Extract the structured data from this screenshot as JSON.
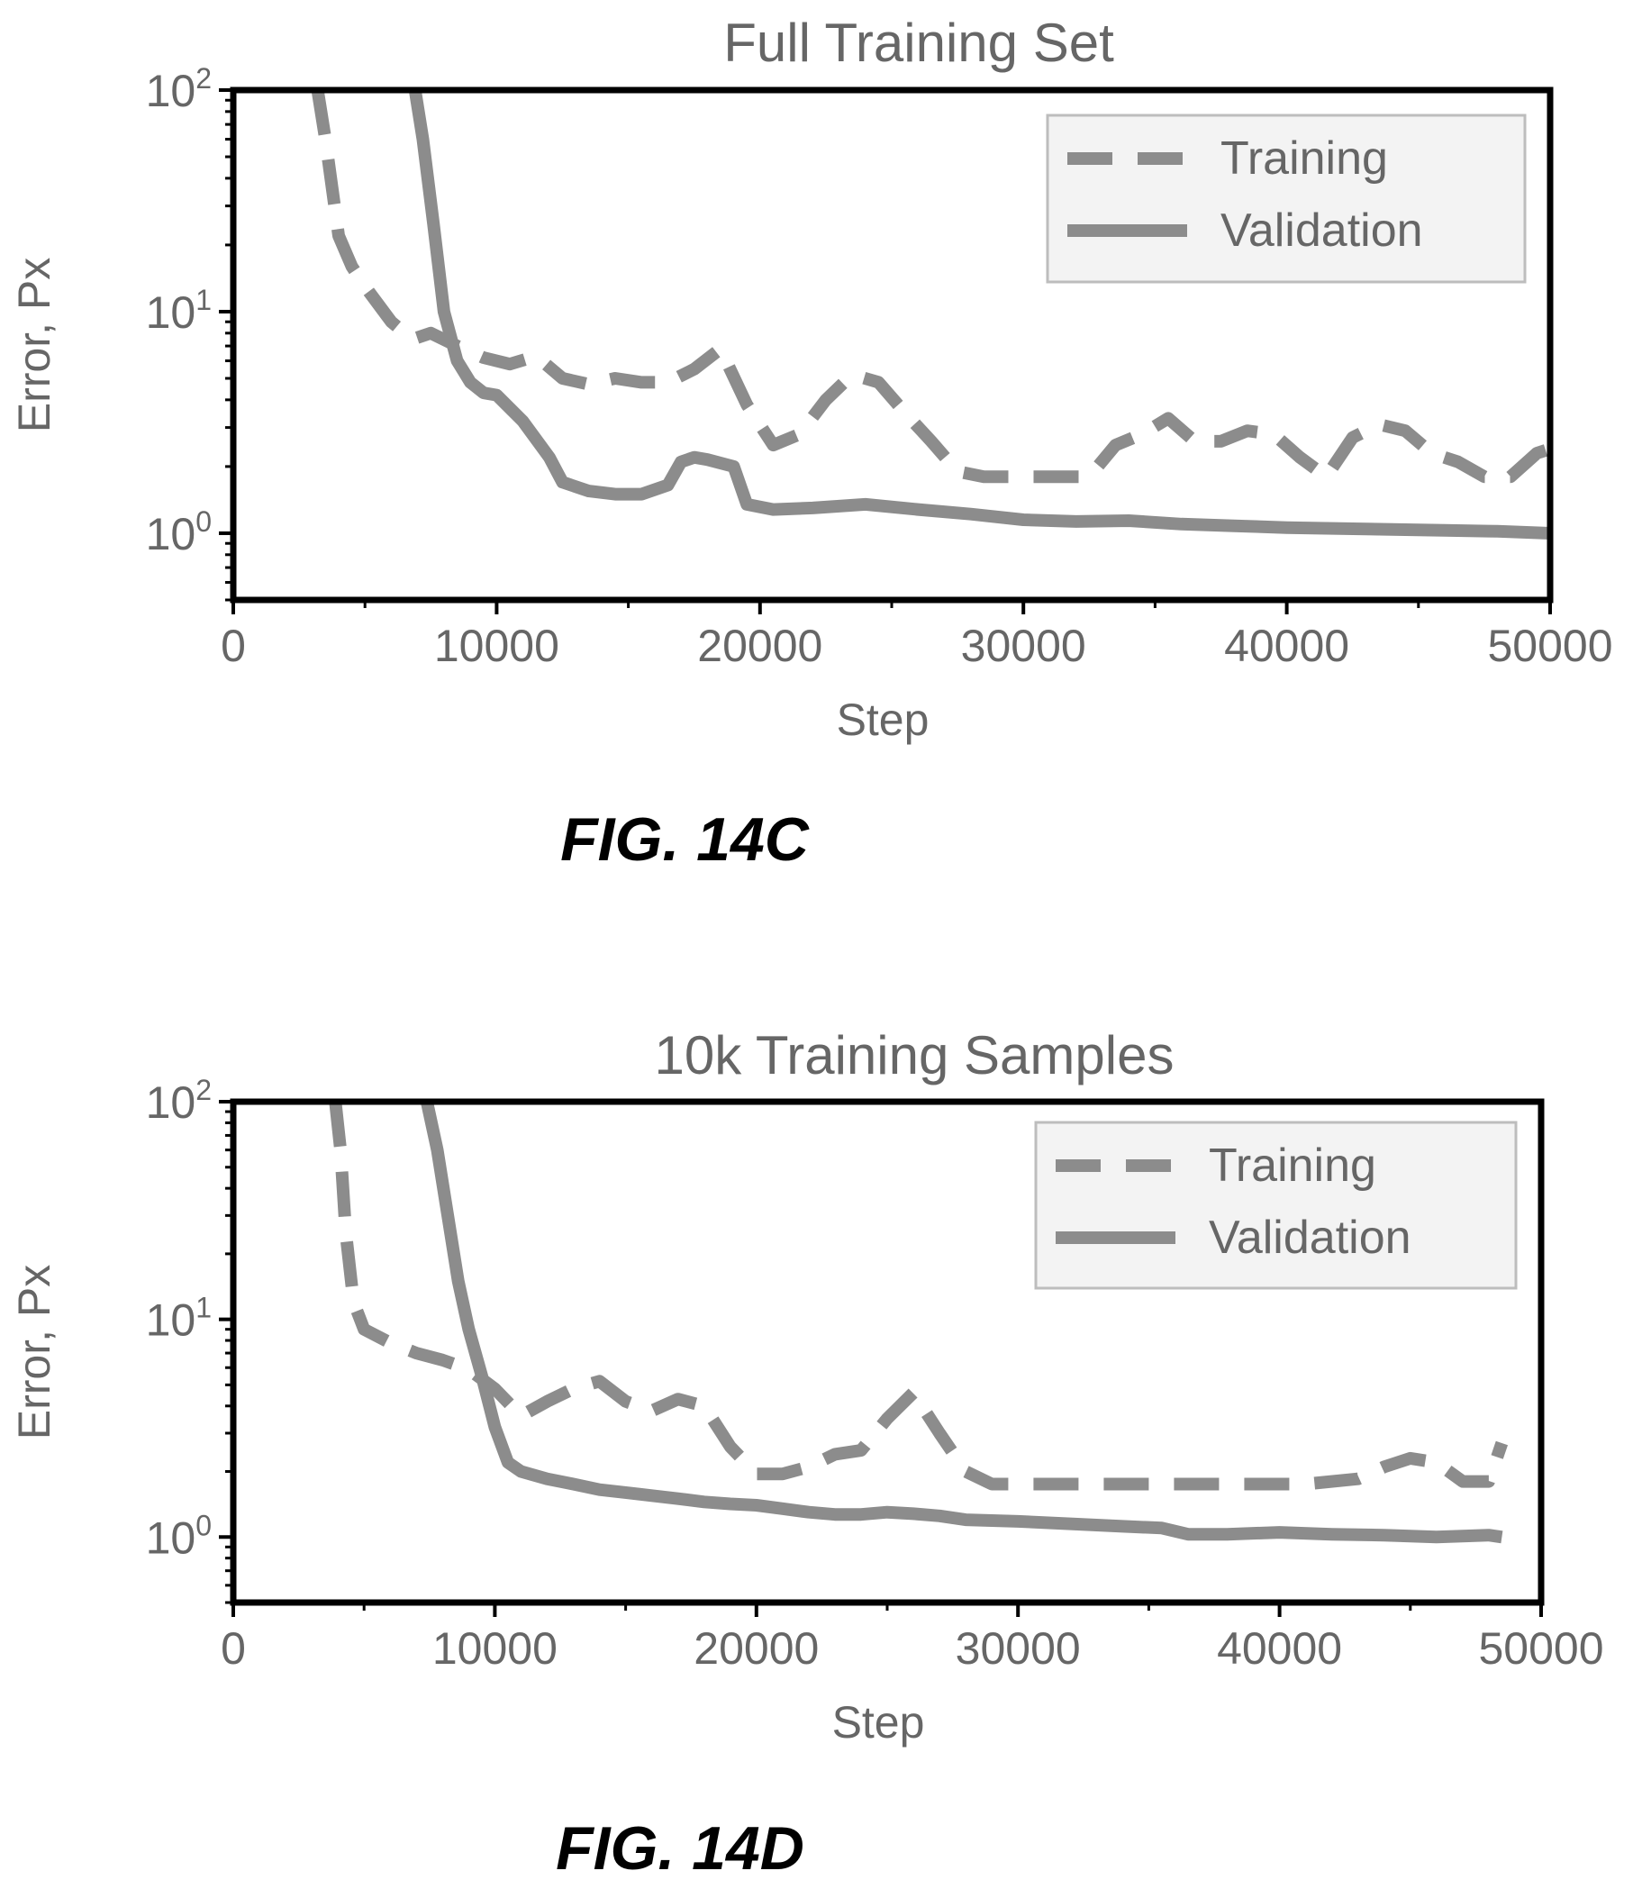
{
  "colors": {
    "series": "#8c8c8c",
    "frame": "#000000",
    "text": "#666666",
    "caption": "#000000",
    "legend_bg": "#f3f3f3",
    "legend_border": "#bdbdbd"
  },
  "chart_data": [
    {
      "type": "line",
      "title": "Full Training Set",
      "xlabel": "Step",
      "ylabel": "Error, Px",
      "xlim": [
        0,
        50000
      ],
      "ylim": [
        0.5,
        100
      ],
      "y_scale": "log",
      "x_ticks": [
        0,
        10000,
        20000,
        30000,
        40000,
        50000
      ],
      "x_tick_labels": [
        "0",
        "10000",
        "20000",
        "30000",
        "40000",
        "50000"
      ],
      "y_ticks": [
        1,
        10,
        100
      ],
      "y_tick_bases": [
        "10",
        "10",
        "10"
      ],
      "y_tick_exponents": [
        "0",
        "1",
        "2"
      ],
      "grid": false,
      "legend_position": "top-right",
      "caption": "FIG. 14C",
      "series": [
        {
          "name": "Training",
          "style": "dashed",
          "x": [
            3200,
            3500,
            4000,
            4500,
            5000,
            6000,
            6800,
            7500,
            8500,
            9500,
            10500,
            11500,
            12500,
            13500,
            14500,
            15500,
            16500,
            17500,
            18500,
            19500,
            20500,
            21500,
            22500,
            23500,
            24500,
            25500,
            26500,
            27500,
            28500,
            30000,
            31500,
            32500,
            33500,
            34500,
            35500,
            36500,
            37500,
            38500,
            39500,
            40500,
            41500,
            42500,
            43500,
            44500,
            45500,
            46500,
            47500,
            48500,
            49500,
            50000
          ],
          "y": [
            100,
            60,
            22,
            16,
            13,
            9,
            7.5,
            8,
            7,
            6.2,
            5.8,
            6.3,
            5,
            4.7,
            5,
            4.8,
            4.8,
            5.5,
            6.8,
            3.8,
            2.5,
            2.8,
            4,
            5.2,
            4.8,
            3.5,
            2.6,
            1.9,
            1.8,
            1.8,
            1.8,
            1.8,
            2.5,
            2.8,
            3.3,
            2.6,
            2.6,
            2.9,
            2.8,
            2.2,
            1.8,
            2.7,
            3.1,
            2.9,
            2.3,
            2.1,
            1.8,
            1.8,
            2.3,
            2.4
          ]
        },
        {
          "name": "Validation",
          "style": "solid",
          "x": [
            6900,
            7200,
            7600,
            8000,
            8500,
            9000,
            9500,
            10000,
            11000,
            12000,
            12500,
            13500,
            14500,
            15500,
            16500,
            17000,
            17500,
            18000,
            19000,
            19500,
            20500,
            22000,
            24000,
            26000,
            28000,
            30000,
            32000,
            34000,
            36000,
            38000,
            40000,
            42000,
            44000,
            46000,
            48000,
            50000
          ],
          "y": [
            100,
            60,
            25,
            10,
            6,
            4.8,
            4.3,
            4.2,
            3.2,
            2.2,
            1.7,
            1.55,
            1.5,
            1.5,
            1.65,
            2.1,
            2.2,
            2.15,
            2,
            1.35,
            1.28,
            1.3,
            1.35,
            1.28,
            1.22,
            1.15,
            1.13,
            1.14,
            1.1,
            1.08,
            1.06,
            1.05,
            1.04,
            1.03,
            1.02,
            1
          ]
        }
      ]
    },
    {
      "type": "line",
      "title": "10k Training Samples",
      "xlabel": "Step",
      "ylabel": "Error, Px",
      "xlim": [
        0,
        50000
      ],
      "ylim": [
        0.5,
        100
      ],
      "y_scale": "log",
      "x_ticks": [
        0,
        10000,
        20000,
        30000,
        40000,
        50000
      ],
      "x_tick_labels": [
        "0",
        "10000",
        "20000",
        "30000",
        "40000",
        "50000"
      ],
      "y_ticks": [
        1,
        10,
        100
      ],
      "y_tick_bases": [
        "10",
        "10",
        "10"
      ],
      "y_tick_exponents": [
        "0",
        "1",
        "2"
      ],
      "grid": false,
      "legend_position": "top-right",
      "caption": "FIG. 14D",
      "series": [
        {
          "name": "Training",
          "style": "dashed",
          "x": [
            3900,
            4100,
            4300,
            4600,
            5000,
            6000,
            7000,
            8000,
            9000,
            10000,
            11000,
            12000,
            13000,
            14000,
            15000,
            16000,
            17000,
            18000,
            19000,
            20000,
            21000,
            22000,
            23000,
            24000,
            25000,
            26000,
            27000,
            28000,
            29000,
            31000,
            33000,
            35000,
            37000,
            39000,
            41000,
            43000,
            44000,
            45000,
            46000,
            47000,
            48000,
            48500
          ],
          "y": [
            100,
            60,
            25,
            12,
            9,
            7.8,
            7,
            6.5,
            5.9,
            4.8,
            3.6,
            4.2,
            4.8,
            5.2,
            4.2,
            3.8,
            4.3,
            4,
            2.6,
            1.95,
            1.95,
            2.1,
            2.4,
            2.5,
            3.5,
            4.6,
            3,
            2,
            1.75,
            1.75,
            1.75,
            1.75,
            1.75,
            1.75,
            1.75,
            1.85,
            2.1,
            2.3,
            2.2,
            1.8,
            1.8,
            2.7
          ]
        },
        {
          "name": "Validation",
          "style": "solid",
          "x": [
            7400,
            7800,
            8200,
            8600,
            9000,
            9500,
            10000,
            10500,
            11000,
            12000,
            13000,
            14000,
            15000,
            16000,
            17000,
            18000,
            19000,
            20000,
            21000,
            22000,
            23000,
            24000,
            25000,
            26000,
            27000,
            28000,
            30000,
            32000,
            34000,
            35500,
            36500,
            38000,
            40000,
            42000,
            44000,
            46000,
            48000,
            48500
          ],
          "y": [
            100,
            60,
            30,
            15,
            9,
            5.5,
            3.2,
            2.2,
            2,
            1.85,
            1.75,
            1.65,
            1.6,
            1.55,
            1.5,
            1.45,
            1.42,
            1.4,
            1.35,
            1.3,
            1.27,
            1.27,
            1.3,
            1.28,
            1.25,
            1.2,
            1.18,
            1.15,
            1.12,
            1.1,
            1.03,
            1.03,
            1.05,
            1.03,
            1.02,
            1.0,
            1.02,
            1.0
          ]
        }
      ]
    }
  ]
}
